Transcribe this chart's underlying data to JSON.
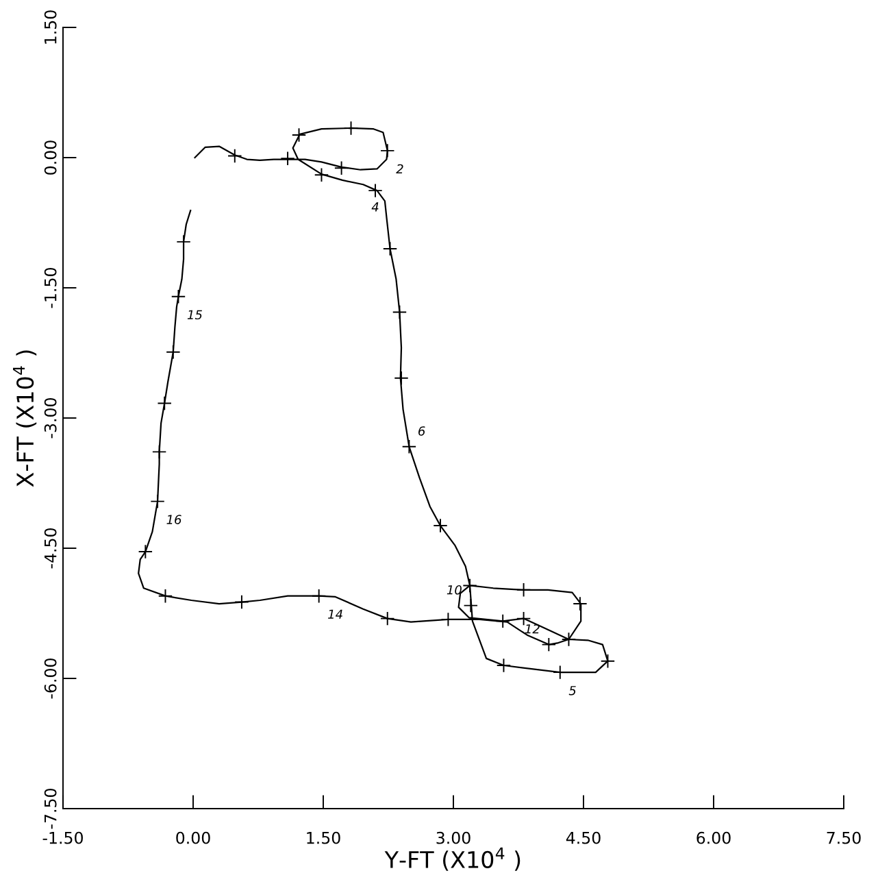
{
  "chart_data": {
    "type": "line",
    "xlabel": "Y-FT (X10$^{4}$ )",
    "ylabel": "X-FT (X10$^{4}$ )",
    "xlim": [
      -1.5,
      7.5
    ],
    "ylim": [
      -7.5,
      1.5
    ],
    "xticks": [
      {
        "value": -1.5,
        "label": "-1.50"
      },
      {
        "value": 0,
        "label": "0.00"
      },
      {
        "value": 1.5,
        "label": "1.50"
      },
      {
        "value": 3,
        "label": "3.00"
      },
      {
        "value": 4.5,
        "label": "4.50"
      },
      {
        "value": 6,
        "label": "6.00"
      },
      {
        "value": 7.5,
        "label": "7.50"
      }
    ],
    "yticks": [
      {
        "value": -7.5,
        "label": "-7.50"
      },
      {
        "value": -6,
        "label": "-6.00"
      },
      {
        "value": -4.5,
        "label": "-4.50"
      },
      {
        "value": -3,
        "label": "-3.00"
      },
      {
        "value": -1.5,
        "label": "-1.50"
      },
      {
        "value": 0,
        "label": "0.00"
      },
      {
        "value": 1.5,
        "label": "1.50"
      }
    ],
    "grid": false,
    "legend": false,
    "series": [
      {
        "type": "line",
        "color": "#000000",
        "marker": "none",
        "line_style": "solid",
        "x": [
          0.02,
          0.14,
          0.3,
          0.48,
          0.62,
          0.77,
          0.93,
          1.09,
          1.29,
          1.48,
          1.71,
          1.93,
          2.12,
          2.23,
          2.24,
          2.19,
          2.08,
          1.82,
          1.48,
          1.23,
          1.15,
          1.21,
          1.48,
          1.72,
          1.96,
          2.12,
          2.21,
          2.23,
          2.27,
          2.34,
          2.38,
          2.4,
          2.39,
          2.42,
          2.49,
          2.61,
          2.73,
          2.85,
          3.02,
          3.14,
          3.19,
          3.22,
          3.38,
          3.58,
          4.23,
          4.64,
          4.78,
          4.72,
          4.55,
          4.33,
          4.47,
          4.47,
          4.37,
          4.09,
          3.81,
          3.46,
          3.19,
          3.08,
          3.06,
          3.18,
          3.57,
          3.81,
          4.05,
          4.33,
          4.21,
          4.1,
          3.85,
          3.62,
          3.3,
          2.94,
          2.51,
          2.24,
          1.96,
          1.64,
          1.45,
          1.09,
          0.77,
          0.56,
          0.3,
          -0.02,
          -0.32,
          -0.57,
          -0.63,
          -0.61,
          -0.55,
          -0.47,
          -0.41,
          -0.39,
          -0.39,
          -0.37,
          -0.33,
          -0.29,
          -0.23,
          -0.21,
          -0.19,
          -0.17,
          -0.13,
          -0.11,
          -0.11,
          -0.08,
          -0.03
        ],
        "values": [
          0.0,
          0.12,
          0.13,
          0.03,
          -0.02,
          -0.03,
          -0.02,
          -0.02,
          -0.02,
          -0.05,
          -0.11,
          -0.14,
          -0.13,
          -0.02,
          0.08,
          0.29,
          0.33,
          0.34,
          0.33,
          0.27,
          0.11,
          -0.02,
          -0.19,
          -0.26,
          -0.31,
          -0.38,
          -0.5,
          -0.69,
          -1.05,
          -1.4,
          -1.78,
          -2.19,
          -2.54,
          -2.9,
          -3.33,
          -3.69,
          -4.02,
          -4.24,
          -4.47,
          -4.71,
          -4.93,
          -5.34,
          -5.77,
          -5.85,
          -5.93,
          -5.93,
          -5.8,
          -5.61,
          -5.56,
          -5.55,
          -5.34,
          -5.14,
          -5.01,
          -4.98,
          -4.98,
          -4.96,
          -4.93,
          -5.02,
          -5.18,
          -5.3,
          -5.34,
          -5.31,
          -5.42,
          -5.55,
          -5.59,
          -5.61,
          -5.5,
          -5.35,
          -5.32,
          -5.32,
          -5.35,
          -5.31,
          -5.2,
          -5.06,
          -5.05,
          -5.05,
          -5.1,
          -5.12,
          -5.14,
          -5.1,
          -5.05,
          -4.96,
          -4.79,
          -4.63,
          -4.54,
          -4.31,
          -3.96,
          -3.53,
          -3.39,
          -3.06,
          -2.83,
          -2.58,
          -2.24,
          -1.95,
          -1.72,
          -1.6,
          -1.4,
          -1.17,
          -0.97,
          -0.77,
          -0.61
        ]
      },
      {
        "type": "scatter",
        "color": "#000000",
        "marker": "cross",
        "x": [
          0.48,
          1.09,
          1.71,
          1.22,
          1.82,
          2.24,
          1.48,
          2.1,
          2.27,
          2.38,
          2.4,
          2.49,
          2.85,
          3.19,
          3.2,
          3.81,
          4.46,
          4.33,
          4.78,
          4.23,
          3.58,
          4.1,
          3.81,
          3.57,
          2.94,
          2.24,
          1.45,
          0.56,
          -0.32,
          -0.55,
          -0.41,
          -0.39,
          -0.33,
          -0.23,
          -0.17,
          -0.11
        ],
        "values": [
          0.02,
          -0.01,
          -0.12,
          0.26,
          0.34,
          0.08,
          -0.2,
          -0.38,
          -1.05,
          -1.78,
          -2.54,
          -3.33,
          -4.24,
          -4.93,
          -5.16,
          -4.98,
          -5.14,
          -5.55,
          -5.8,
          -5.93,
          -5.85,
          -5.61,
          -5.31,
          -5.34,
          -5.32,
          -5.31,
          -5.05,
          -5.12,
          -5.05,
          -4.54,
          -3.96,
          -3.39,
          -2.83,
          -2.24,
          -1.6,
          -0.97
        ]
      }
    ],
    "annotations": [
      {
        "text": "2",
        "x": 2.24,
        "y": 0.08
      },
      {
        "text": "4",
        "x": 2.1,
        "y": -0.38
      },
      {
        "text": "6",
        "x": 2.49,
        "y": -3.33
      },
      {
        "text": "10",
        "x": 3.2,
        "y": -5.16
      },
      {
        "text": "12",
        "x": 4.1,
        "y": -5.61
      },
      {
        "text": "5",
        "x": 4.23,
        "y": -5.93
      },
      {
        "text": "14",
        "x": 1.45,
        "y": -5.05
      },
      {
        "text": "16",
        "x": -0.41,
        "y": -3.96
      },
      {
        "text": "15",
        "x": -0.17,
        "y": -1.6
      }
    ]
  }
}
